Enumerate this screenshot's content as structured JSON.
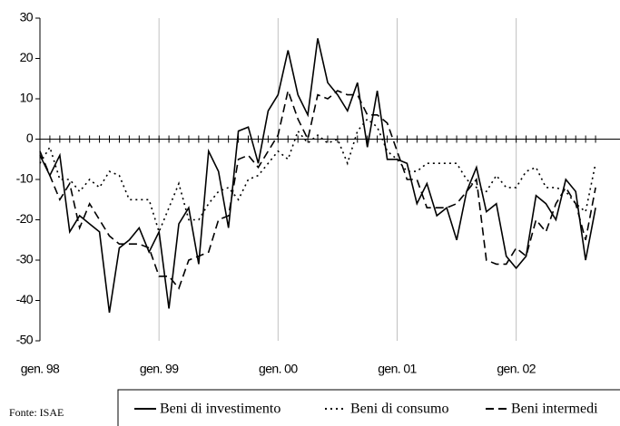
{
  "chart_data": {
    "type": "line",
    "categories": [
      "gen. 98",
      null,
      null,
      null,
      null,
      null,
      null,
      null,
      null,
      null,
      null,
      null,
      "gen. 99",
      null,
      null,
      null,
      null,
      null,
      null,
      null,
      null,
      null,
      null,
      null,
      "gen. 00",
      null,
      null,
      null,
      null,
      null,
      null,
      null,
      null,
      null,
      null,
      null,
      "gen. 01",
      null,
      null,
      null,
      null,
      null,
      null,
      null,
      null,
      null,
      null,
      null,
      "gen. 02",
      null,
      null,
      null,
      null,
      null,
      null,
      null,
      null
    ],
    "series": [
      {
        "name": "Beni di investimento",
        "color": "#000000",
        "dash": "solid",
        "values": [
          -4,
          -9,
          -4,
          -23,
          -19,
          -21,
          -23,
          -43,
          -27,
          -25,
          -22,
          -28,
          -23,
          -42,
          -21,
          -17,
          -31,
          -3,
          -8,
          -22,
          2,
          3,
          -6,
          7,
          11,
          22,
          11,
          6,
          25,
          14,
          11,
          7,
          14,
          -2,
          12,
          -5,
          -5,
          -6,
          -16,
          -11,
          -19,
          -17,
          -25,
          -13,
          -7,
          -18,
          -16,
          -29,
          -32,
          -29,
          -14,
          -16,
          -20,
          -10,
          -13,
          -30,
          -17
        ]
      },
      {
        "name": "Beni di consumo",
        "color": "#000000",
        "dash": "dotted",
        "values": [
          -6,
          -2,
          -10,
          -10,
          -13,
          -10,
          -12,
          -8,
          -9,
          -15,
          -15,
          -15,
          -23,
          -17,
          -11,
          -20,
          -20,
          -16,
          -13,
          -12,
          -15,
          -10,
          -9,
          -6,
          -3,
          -5,
          2,
          -1,
          1,
          -1,
          0,
          -6,
          2,
          5,
          3,
          -3,
          -5,
          -8,
          -8,
          -6,
          -6,
          -6,
          -6,
          -10,
          -12,
          -13,
          -9,
          -12,
          -12,
          -8,
          -7,
          -12,
          -12,
          -13,
          -16,
          -18,
          -6
        ]
      },
      {
        "name": "Beni intermedi",
        "color": "#000000",
        "dash": "dashed",
        "values": [
          -3,
          -9,
          -15,
          -11,
          -22,
          -16,
          -20,
          -24,
          -26,
          -26,
          -26,
          -27,
          -34,
          -34,
          -37,
          -30,
          -29,
          -28,
          -20,
          -19,
          -5,
          -4,
          -7,
          -3,
          1,
          12,
          5,
          0,
          11,
          10,
          12,
          11,
          11,
          6,
          6,
          4,
          -3,
          -10,
          -10,
          -17,
          -17,
          -17,
          -16,
          -13,
          -10,
          -30,
          -31,
          -31,
          -27,
          -29,
          -20,
          -23,
          -16,
          -12,
          -16,
          -25,
          -12
        ]
      }
    ],
    "ylim": [
      -50,
      30
    ],
    "yticks": [
      -50,
      -40,
      -30,
      -20,
      -10,
      0,
      10,
      20,
      30
    ],
    "grid": true,
    "source": "Fonte: ISAE",
    "legend": "bottom"
  }
}
